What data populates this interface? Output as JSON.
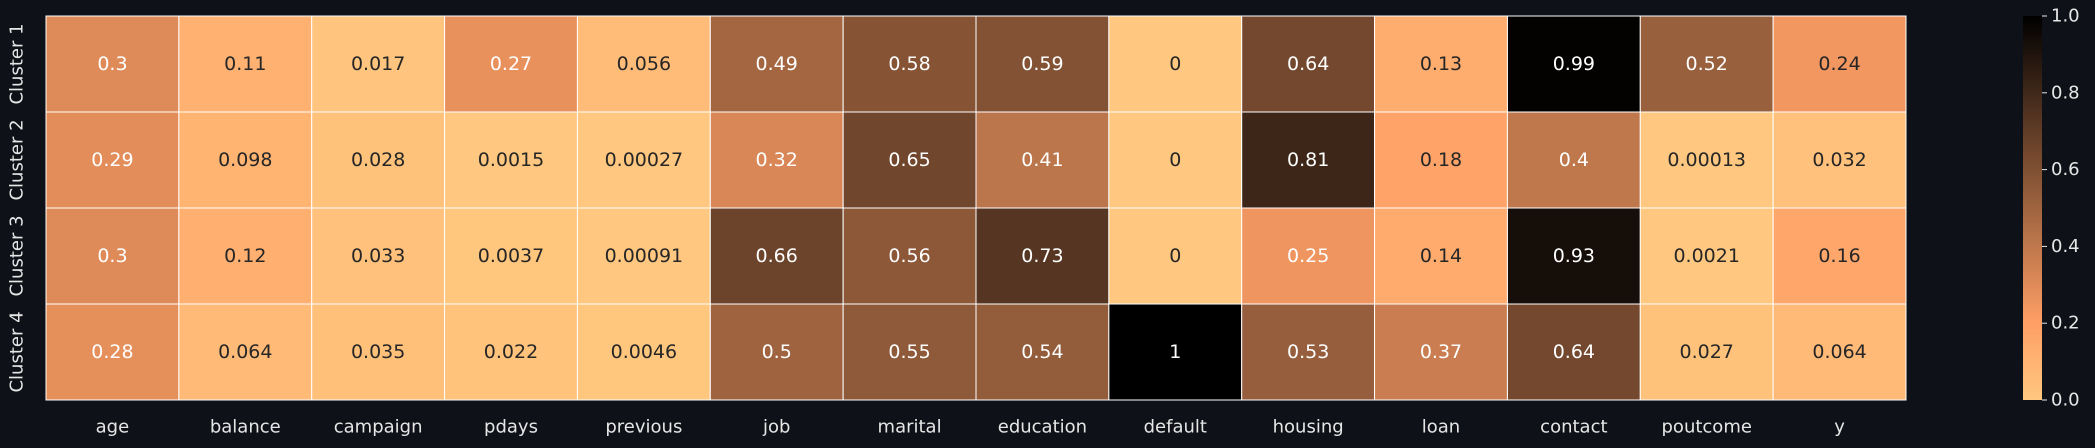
{
  "chart_data": {
    "type": "heatmap",
    "title": "",
    "xlabel": "",
    "ylabel": "",
    "x_labels": [
      "age",
      "balance",
      "campaign",
      "pdays",
      "previous",
      "job",
      "marital",
      "education",
      "default",
      "housing",
      "loan",
      "contact",
      "poutcome",
      "y"
    ],
    "y_labels": [
      "Cluster 1",
      "Cluster 2",
      "Cluster 3",
      "Cluster 4"
    ],
    "values": [
      [
        0.3,
        0.11,
        0.017,
        0.27,
        0.056,
        0.49,
        0.58,
        0.59,
        0,
        0.64,
        0.13,
        0.99,
        0.52,
        0.24
      ],
      [
        0.29,
        0.098,
        0.028,
        0.0015,
        0.00027,
        0.32,
        0.65,
        0.41,
        0,
        0.81,
        0.18,
        0.4,
        0.00013,
        0.032
      ],
      [
        0.3,
        0.12,
        0.033,
        0.0037,
        0.00091,
        0.66,
        0.56,
        0.73,
        0,
        0.25,
        0.14,
        0.93,
        0.0021,
        0.16
      ],
      [
        0.28,
        0.064,
        0.035,
        0.022,
        0.0046,
        0.5,
        0.55,
        0.54,
        1,
        0.53,
        0.37,
        0.64,
        0.027,
        0.064
      ]
    ],
    "labels": [
      [
        "0.3",
        "0.11",
        "0.017",
        "0.27",
        "0.056",
        "0.49",
        "0.58",
        "0.59",
        "0",
        "0.64",
        "0.13",
        "0.99",
        "0.52",
        "0.24"
      ],
      [
        "0.29",
        "0.098",
        "0.028",
        "0.0015",
        "0.00027",
        "0.32",
        "0.65",
        "0.41",
        "0",
        "0.81",
        "0.18",
        "0.4",
        "0.00013",
        "0.032"
      ],
      [
        "0.3",
        "0.12",
        "0.033",
        "0.0037",
        "0.00091",
        "0.66",
        "0.56",
        "0.73",
        "0",
        "0.25",
        "0.14",
        "0.93",
        "0.0021",
        "0.16"
      ],
      [
        "0.28",
        "0.064",
        "0.035",
        "0.022",
        "0.0046",
        "0.5",
        "0.55",
        "0.54",
        "1",
        "0.53",
        "0.37",
        "0.64",
        "0.027",
        "0.064"
      ]
    ],
    "colorbar": {
      "min": 0,
      "max": 1,
      "ticks": [
        0.0,
        0.2,
        0.4,
        0.6,
        0.8,
        1.0
      ],
      "tick_labels": [
        "0.0",
        "0.2",
        "0.4",
        "0.6",
        "0.8",
        "1.0"
      ]
    },
    "colormap": "copper_r",
    "colors": {
      "background": "#0e1117",
      "grid_line": "#ffffff",
      "tick_text": "#e6e6e6",
      "light_text": "#ffffff",
      "dark_text": "#262626"
    }
  }
}
